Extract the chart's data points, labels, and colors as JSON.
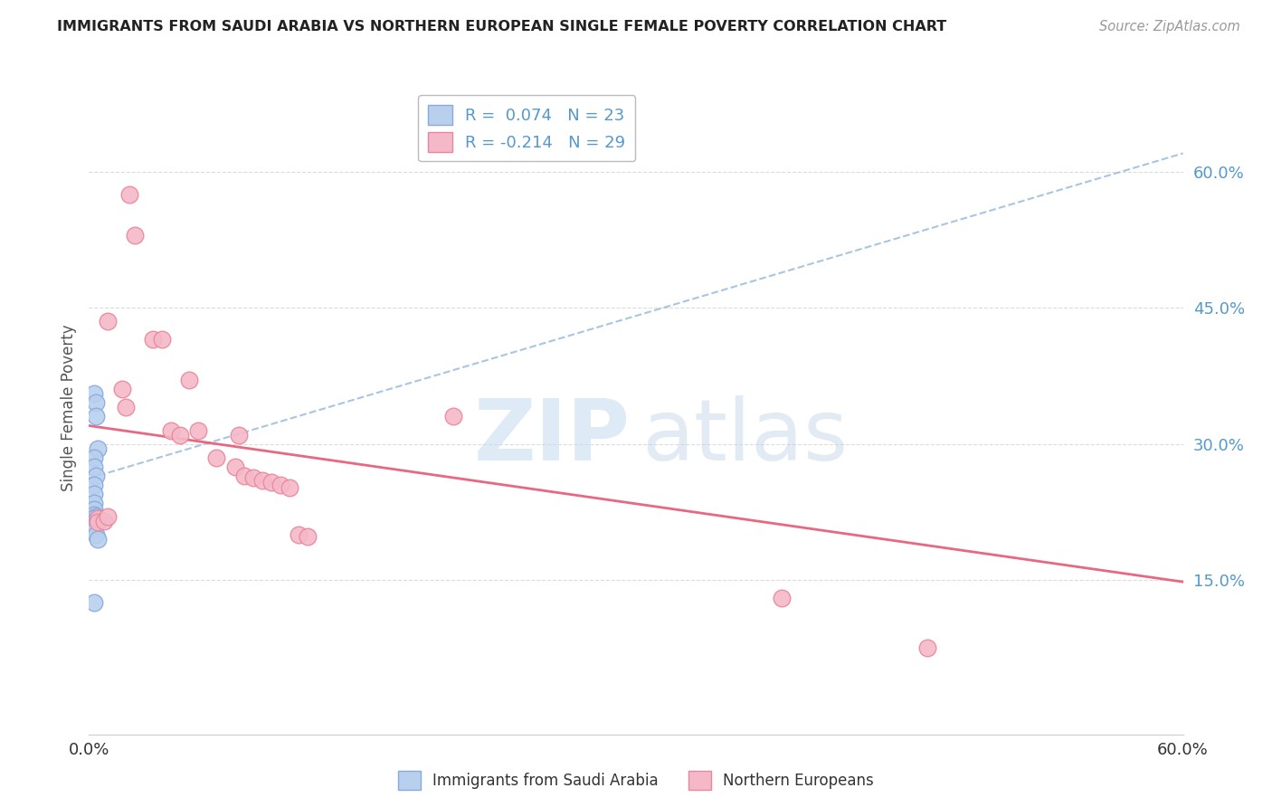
{
  "title": "IMMIGRANTS FROM SAUDI ARABIA VS NORTHERN EUROPEAN SINGLE FEMALE POVERTY CORRELATION CHART",
  "source": "Source: ZipAtlas.com",
  "ylabel": "Single Female Poverty",
  "ytick_labels": [
    "15.0%",
    "30.0%",
    "45.0%",
    "60.0%"
  ],
  "ytick_values": [
    0.15,
    0.3,
    0.45,
    0.6
  ],
  "xlim": [
    0.0,
    0.6
  ],
  "ylim": [
    -0.02,
    0.7
  ],
  "saudi_color": "#b8d0ee",
  "saudi_edge": "#88aadd",
  "northern_color": "#f5b8c8",
  "northern_edge": "#e8889a",
  "trend_saudi_color": "#99bbdd",
  "trend_northern_color": "#e8607a",
  "saudi_x": [
    0.003,
    0.004,
    0.004,
    0.005,
    0.003,
    0.003,
    0.004,
    0.003,
    0.003,
    0.003,
    0.003,
    0.003,
    0.004,
    0.003,
    0.003,
    0.003,
    0.003,
    0.003,
    0.003,
    0.003,
    0.004,
    0.005,
    0.003
  ],
  "saudi_y": [
    0.355,
    0.345,
    0.33,
    0.295,
    0.285,
    0.275,
    0.265,
    0.255,
    0.245,
    0.235,
    0.228,
    0.222,
    0.22,
    0.218,
    0.215,
    0.213,
    0.21,
    0.208,
    0.206,
    0.204,
    0.2,
    0.195,
    0.125
  ],
  "northern_x": [
    0.022,
    0.025,
    0.01,
    0.035,
    0.04,
    0.018,
    0.02,
    0.045,
    0.05,
    0.055,
    0.06,
    0.07,
    0.08,
    0.082,
    0.085,
    0.09,
    0.095,
    0.1,
    0.105,
    0.11,
    0.115,
    0.12,
    0.2,
    0.38,
    0.005,
    0.005,
    0.008,
    0.01,
    0.46
  ],
  "northern_y": [
    0.575,
    0.53,
    0.435,
    0.415,
    0.415,
    0.36,
    0.34,
    0.315,
    0.31,
    0.37,
    0.315,
    0.285,
    0.275,
    0.31,
    0.265,
    0.263,
    0.26,
    0.258,
    0.255,
    0.252,
    0.2,
    0.198,
    0.33,
    0.13,
    0.218,
    0.214,
    0.215,
    0.22,
    0.075
  ],
  "saudi_trend_x": [
    0.0,
    0.6
  ],
  "saudi_trend_y": [
    0.262,
    0.62
  ],
  "northern_trend_x": [
    0.0,
    0.6
  ],
  "northern_trend_y": [
    0.32,
    0.148
  ],
  "background_color": "#ffffff",
  "grid_color": "#cccccc",
  "watermark_zip_color": "#c8dcf0",
  "watermark_atlas_color": "#c0d4e8"
}
